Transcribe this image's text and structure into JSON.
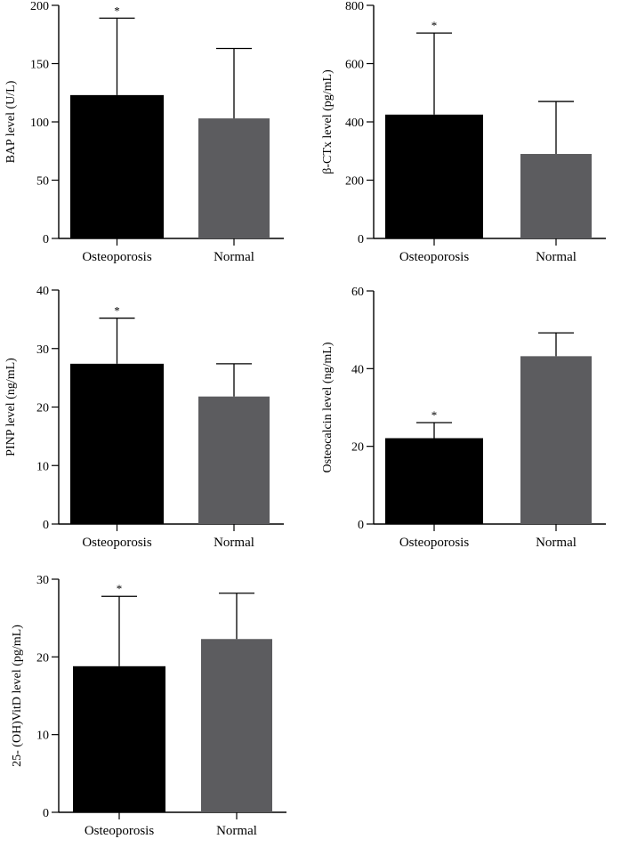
{
  "chart_data": [
    {
      "type": "bar",
      "title": "",
      "categories": [
        "Osteoporosis",
        "Normal"
      ],
      "values": [
        123,
        103
      ],
      "errors": [
        66,
        60
      ],
      "significance": [
        "*",
        ""
      ],
      "ylabel": "BAP level (U/L)",
      "ylim": [
        0,
        200
      ],
      "yticks": [
        0,
        50,
        100,
        150,
        200
      ],
      "colors": [
        "#000000",
        "#5c5c5f"
      ]
    },
    {
      "type": "bar",
      "title": "",
      "categories": [
        "Osteoporosis",
        "Normal"
      ],
      "values": [
        425,
        290
      ],
      "errors": [
        280,
        180
      ],
      "significance": [
        "*",
        ""
      ],
      "ylabel": "β-CTx level (pg/mL)",
      "ylim": [
        0,
        800
      ],
      "yticks": [
        0,
        200,
        400,
        600,
        800
      ],
      "colors": [
        "#000000",
        "#5c5c5f"
      ]
    },
    {
      "type": "bar",
      "title": "",
      "categories": [
        "Osteoporosis",
        "Normal"
      ],
      "values": [
        27.4,
        21.8
      ],
      "errors": [
        7.8,
        5.6
      ],
      "significance": [
        "*",
        ""
      ],
      "ylabel": "PINP level (ng/mL)",
      "ylim": [
        0,
        40
      ],
      "yticks": [
        0,
        10,
        20,
        30,
        40
      ],
      "colors": [
        "#000000",
        "#5c5c5f"
      ]
    },
    {
      "type": "bar",
      "title": "",
      "categories": [
        "Osteoporosis",
        "Normal"
      ],
      "values": [
        22.1,
        43.2
      ],
      "errors": [
        4.0,
        6.0
      ],
      "significance": [
        "*",
        ""
      ],
      "ylabel": "Osteocalcin level (ng/mL)",
      "ylim": [
        0,
        60
      ],
      "yticks": [
        0,
        20,
        40,
        60
      ],
      "colors": [
        "#000000",
        "#5c5c5f"
      ]
    },
    {
      "type": "bar",
      "title": "",
      "categories": [
        "Osteoporosis",
        "Normal"
      ],
      "values": [
        18.8,
        22.3
      ],
      "errors": [
        9.0,
        5.9
      ],
      "significance": [
        "*",
        ""
      ],
      "ylabel": "25- (OH)VitD level (pg/mL)",
      "ylim": [
        0,
        30
      ],
      "yticks": [
        0,
        10,
        20,
        30
      ],
      "colors": [
        "#000000",
        "#5c5c5f"
      ]
    }
  ]
}
